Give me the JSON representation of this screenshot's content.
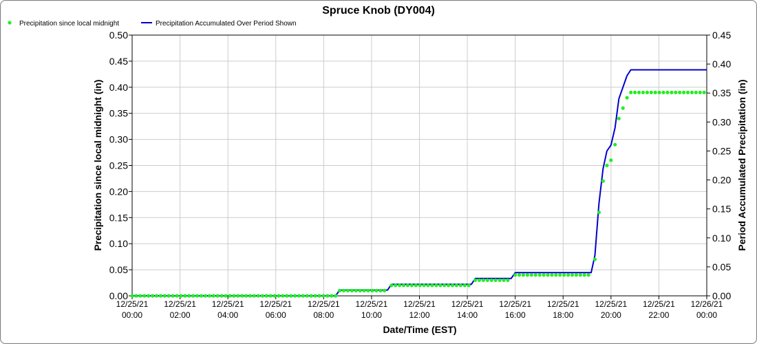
{
  "chart_data": {
    "type": "line",
    "title": "Spruce Knob (DY004)",
    "xlabel": "Date/Time (EST)",
    "ylabel_left": "Precipitation since local midnight (in)",
    "ylabel_right": "Period Accumulated Precipitation (in)",
    "ylim_left": [
      0,
      0.5
    ],
    "ylim_right": [
      0,
      0.45
    ],
    "xlim_hours": [
      0,
      24
    ],
    "grid": true,
    "legend_position": "top-left",
    "left_ticks": [
      "0.00",
      "0.05",
      "0.10",
      "0.15",
      "0.20",
      "0.25",
      "0.30",
      "0.35",
      "0.40",
      "0.45",
      "0.50"
    ],
    "right_ticks": [
      "0.00",
      "0.05",
      "0.10",
      "0.15",
      "0.20",
      "0.25",
      "0.30",
      "0.35",
      "0.40",
      "0.45"
    ],
    "x_ticks": [
      {
        "date": "12/25/21",
        "time": "00:00"
      },
      {
        "date": "12/25/21",
        "time": "02:00"
      },
      {
        "date": "12/25/21",
        "time": "04:00"
      },
      {
        "date": "12/25/21",
        "time": "06:00"
      },
      {
        "date": "12/25/21",
        "time": "08:00"
      },
      {
        "date": "12/25/21",
        "time": "10:00"
      },
      {
        "date": "12/25/21",
        "time": "12:00"
      },
      {
        "date": "12/25/21",
        "time": "14:00"
      },
      {
        "date": "12/25/21",
        "time": "16:00"
      },
      {
        "date": "12/25/21",
        "time": "18:00"
      },
      {
        "date": "12/25/21",
        "time": "20:00"
      },
      {
        "date": "12/25/21",
        "time": "22:00"
      },
      {
        "date": "12/26/21",
        "time": "00:00"
      }
    ],
    "series": [
      {
        "name": "Precipitation since local midnight",
        "axis": "left",
        "style": "points",
        "color": "#22ee22",
        "levels": [
          {
            "from": 0.0,
            "to": 8.5,
            "step": 0.17,
            "value": 0.0
          },
          {
            "from": 8.67,
            "to": 10.67,
            "step": 0.17,
            "value": 0.01
          },
          {
            "from": 10.83,
            "to": 14.17,
            "step": 0.17,
            "value": 0.02
          },
          {
            "from": 14.33,
            "to": 15.83,
            "step": 0.17,
            "value": 0.03
          },
          {
            "from": 16.0,
            "to": 19.17,
            "step": 0.17,
            "value": 0.04
          }
        ],
        "points": [
          {
            "x": 19.33,
            "y": 0.07
          },
          {
            "x": 19.5,
            "y": 0.16
          },
          {
            "x": 19.67,
            "y": 0.22
          },
          {
            "x": 19.83,
            "y": 0.25
          },
          {
            "x": 20.0,
            "y": 0.26
          },
          {
            "x": 20.17,
            "y": 0.29
          },
          {
            "x": 20.33,
            "y": 0.34
          },
          {
            "x": 20.5,
            "y": 0.36
          },
          {
            "x": 20.67,
            "y": 0.38
          }
        ],
        "plateau": {
          "from": 20.83,
          "to": 24.0,
          "step": 0.17,
          "value": 0.39
        }
      },
      {
        "name": "Precipitation Accumulated Over Period Shown",
        "axis": "right",
        "style": "line",
        "color": "#0000cc",
        "x": [
          0,
          8.5,
          8.67,
          10.67,
          10.83,
          14.17,
          14.33,
          15.83,
          16.0,
          19.17,
          19.33,
          19.5,
          19.67,
          19.83,
          20.0,
          20.17,
          20.33,
          20.5,
          20.67,
          20.83,
          24.0
        ],
        "y": [
          0,
          0,
          0.01,
          0.01,
          0.02,
          0.02,
          0.03,
          0.03,
          0.04,
          0.04,
          0.07,
          0.16,
          0.22,
          0.25,
          0.26,
          0.29,
          0.34,
          0.36,
          0.38,
          0.39,
          0.39
        ]
      }
    ]
  }
}
